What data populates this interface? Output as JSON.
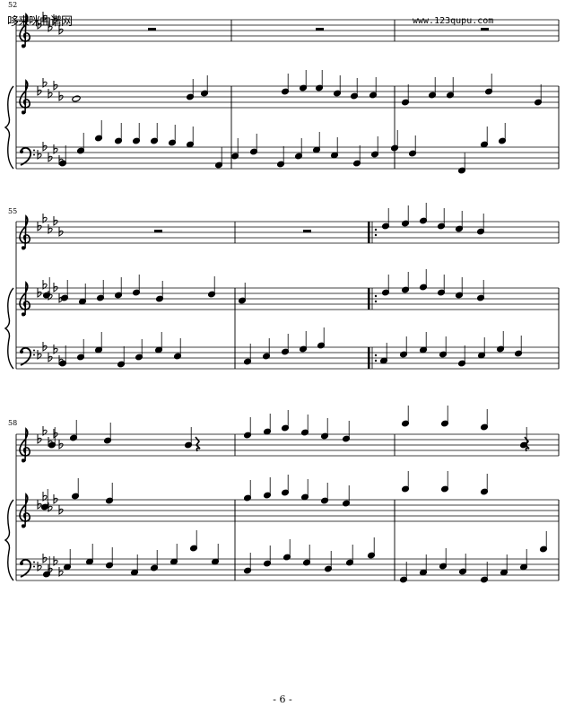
{
  "header": {
    "site_name": "哆来咪曲谱网",
    "url": "www.123qupu.com"
  },
  "measure_numbers": [
    "52",
    "55",
    "58"
  ],
  "footer": {
    "page_number": "- 6 -"
  },
  "score": {
    "key_signature": "5 flats",
    "instruments": [
      "voice",
      "piano-treble",
      "piano-bass"
    ]
  }
}
